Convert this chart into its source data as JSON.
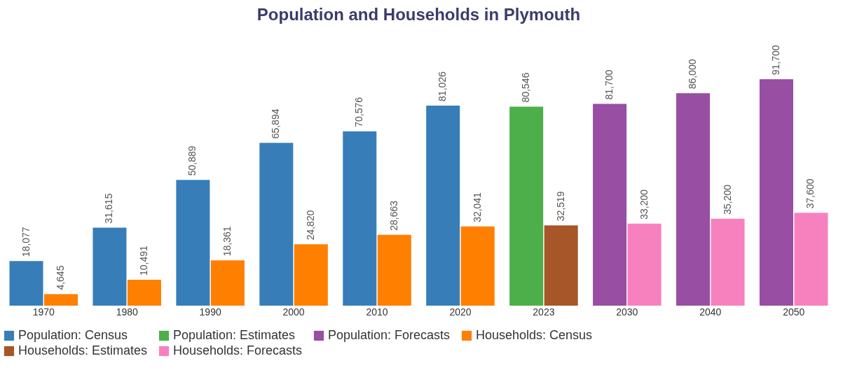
{
  "chart_data": {
    "type": "bar",
    "title": "Population and Households in Plymouth",
    "categories": [
      "1970",
      "1980",
      "1990",
      "2000",
      "2010",
      "2020",
      "2023",
      "2030",
      "2040",
      "2050"
    ],
    "series": [
      {
        "name": "Population: Census",
        "color": "#377eb8",
        "values": [
          18077,
          31615,
          50889,
          65894,
          70576,
          81026,
          null,
          null,
          null,
          null
        ],
        "value_labels": [
          "18,077",
          "31,615",
          "50,889",
          "65,894",
          "70,576",
          "81,026",
          null,
          null,
          null,
          null
        ]
      },
      {
        "name": "Population: Estimates",
        "color": "#4daf4a",
        "values": [
          null,
          null,
          null,
          null,
          null,
          null,
          80546,
          null,
          null,
          null
        ],
        "value_labels": [
          null,
          null,
          null,
          null,
          null,
          null,
          "80,546",
          null,
          null,
          null
        ]
      },
      {
        "name": "Population: Forecasts",
        "color": "#984ea3",
        "values": [
          null,
          null,
          null,
          null,
          null,
          null,
          null,
          81700,
          86000,
          91700
        ],
        "value_labels": [
          null,
          null,
          null,
          null,
          null,
          null,
          null,
          "81,700",
          "86,000",
          "91,700"
        ]
      },
      {
        "name": "Households: Census",
        "color": "#ff7f00",
        "values": [
          4645,
          10491,
          18361,
          24820,
          28663,
          32041,
          null,
          null,
          null,
          null
        ],
        "value_labels": [
          "4,645",
          "10,491",
          "18,361",
          "24,820",
          "28,663",
          "32,041",
          null,
          null,
          null,
          null
        ]
      },
      {
        "name": "Households: Estimates",
        "color": "#a65628",
        "values": [
          null,
          null,
          null,
          null,
          null,
          null,
          32519,
          null,
          null,
          null
        ],
        "value_labels": [
          null,
          null,
          null,
          null,
          null,
          null,
          "32,519",
          null,
          null,
          null
        ]
      },
      {
        "name": "Households: Forecasts",
        "color": "#f781bf",
        "values": [
          null,
          null,
          null,
          null,
          null,
          null,
          null,
          33200,
          35200,
          37600
        ],
        "value_labels": [
          null,
          null,
          null,
          null,
          null,
          null,
          null,
          "33,200",
          "35,200",
          "37,600"
        ]
      }
    ],
    "legend": "bottom",
    "tick_labels": "x",
    "grid": false
  }
}
